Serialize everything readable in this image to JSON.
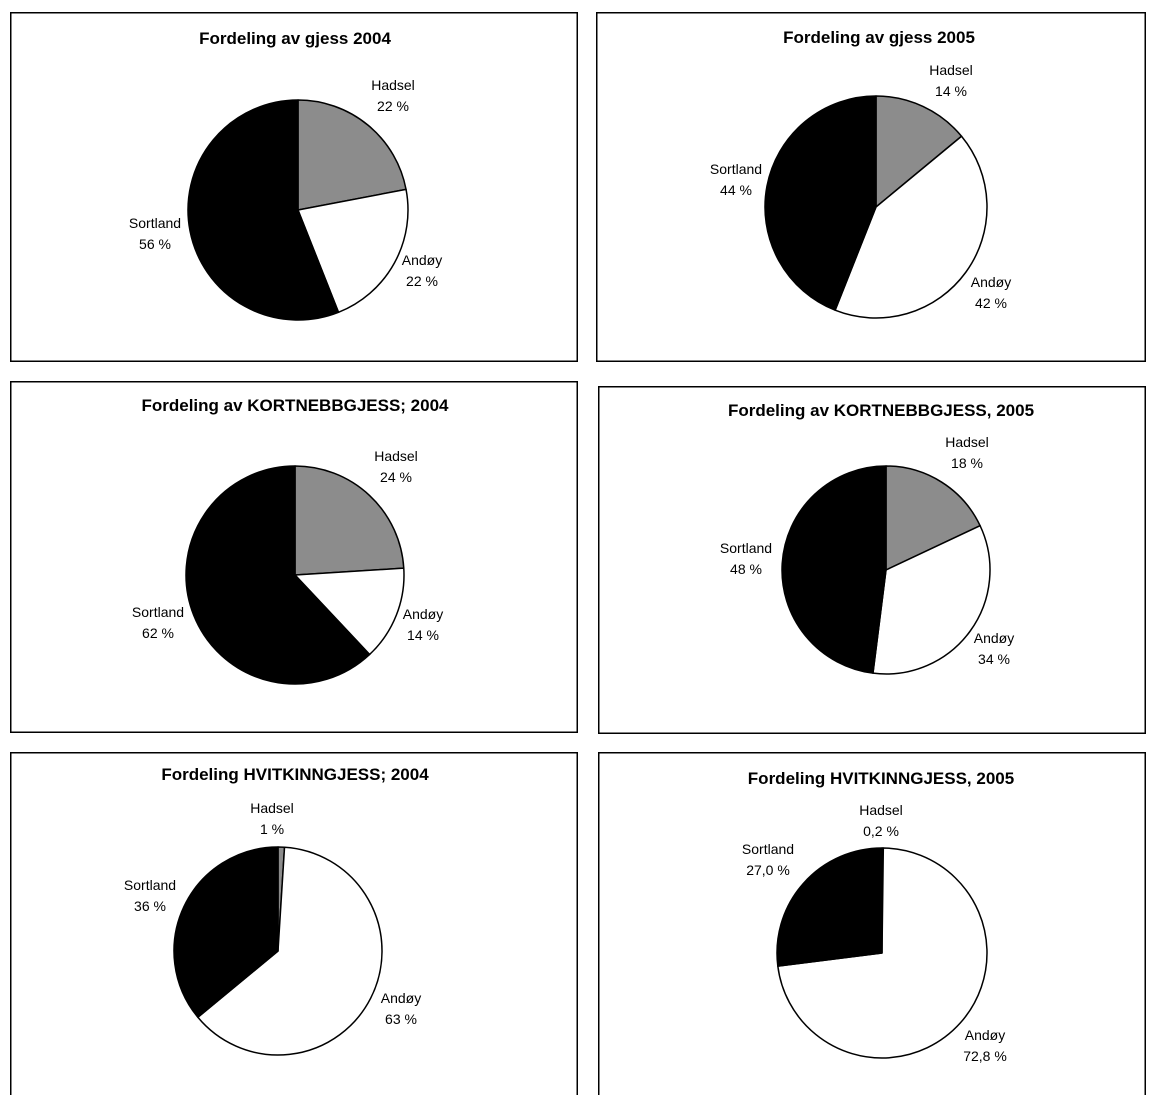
{
  "chart_data": [
    {
      "type": "pie",
      "title": "Fordeling av gjess 2004",
      "labels": [
        "Hadsel",
        "Andøy",
        "Sortland"
      ],
      "values": [
        22,
        22,
        56
      ],
      "value_labels": [
        "22 %",
        "22 %",
        "56 %"
      ],
      "colors": [
        "#8c8c8c",
        "#ffffff",
        "#000000"
      ]
    },
    {
      "type": "pie",
      "title": "Fordeling av gjess 2005",
      "labels": [
        "Hadsel",
        "Andøy",
        "Sortland"
      ],
      "values": [
        14,
        42,
        44
      ],
      "value_labels": [
        "14 %",
        "42 %",
        "44 %"
      ],
      "colors": [
        "#8c8c8c",
        "#ffffff",
        "#000000"
      ]
    },
    {
      "type": "pie",
      "title": "Fordeling av KORTNEBBGJESS; 2004",
      "labels": [
        "Hadsel",
        "Andøy",
        "Sortland"
      ],
      "values": [
        24,
        14,
        62
      ],
      "value_labels": [
        "24 %",
        "14 %",
        "62 %"
      ],
      "colors": [
        "#8c8c8c",
        "#ffffff",
        "#000000"
      ]
    },
    {
      "type": "pie",
      "title": "Fordeling av KORTNEBBGJESS, 2005",
      "labels": [
        "Hadsel",
        "Andøy",
        "Sortland"
      ],
      "values": [
        18,
        34,
        48
      ],
      "value_labels": [
        "18 %",
        "34 %",
        "48 %"
      ],
      "colors": [
        "#8c8c8c",
        "#ffffff",
        "#000000"
      ]
    },
    {
      "type": "pie",
      "title": "Fordeling HVITKINNGJESS; 2004",
      "labels": [
        "Hadsel",
        "Andøy",
        "Sortland"
      ],
      "values": [
        1,
        63,
        36
      ],
      "value_labels": [
        "1 %",
        "63 %",
        "36 %"
      ],
      "colors": [
        "#8c8c8c",
        "#ffffff",
        "#000000"
      ]
    },
    {
      "type": "pie",
      "title": "Fordeling HVITKINNGJESS, 2005",
      "labels": [
        "Hadsel",
        "Andøy",
        "Sortland"
      ],
      "values": [
        0.2,
        72.8,
        27.0
      ],
      "value_labels": [
        "0,2 %",
        "72,8 %",
        "27,0 %"
      ],
      "colors": [
        "#8c8c8c",
        "#ffffff",
        "#000000"
      ]
    }
  ]
}
